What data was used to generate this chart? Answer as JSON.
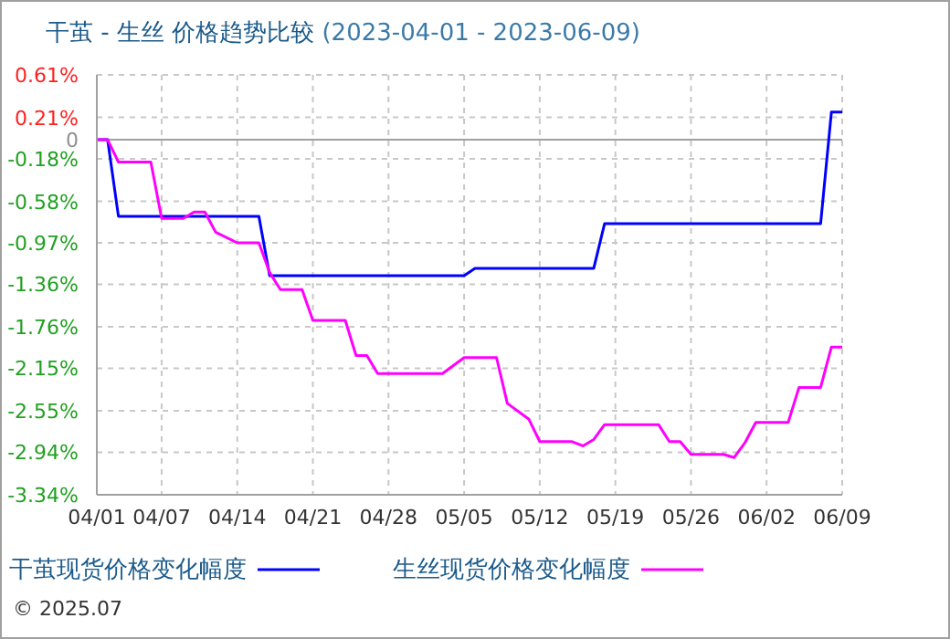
{
  "chart_data": {
    "type": "line",
    "title": "干茧 - 生丝 价格趋势比较",
    "subtitle": "(2023-04-01 - 2023-06-09)",
    "annotations": [
      "© 2025.07"
    ],
    "xlim": [
      "2023-04-01",
      "2023-06-09"
    ],
    "xticks": [
      {
        "value": "2023-04-01",
        "label": "04/01"
      },
      {
        "value": "2023-04-07",
        "label": "04/07"
      },
      {
        "value": "2023-04-14",
        "label": "04/14"
      },
      {
        "value": "2023-04-21",
        "label": "04/21"
      },
      {
        "value": "2023-04-28",
        "label": "04/28"
      },
      {
        "value": "2023-05-05",
        "label": "05/05"
      },
      {
        "value": "2023-05-12",
        "label": "05/12"
      },
      {
        "value": "2023-05-19",
        "label": "05/19"
      },
      {
        "value": "2023-05-26",
        "label": "05/26"
      },
      {
        "value": "2023-06-02",
        "label": "06/02"
      },
      {
        "value": "2023-06-09",
        "label": "06/09"
      }
    ],
    "ylim": [
      -3.34,
      0.61
    ],
    "yticks": [
      {
        "value": 0.61,
        "label": "0.61%"
      },
      {
        "value": 0.21,
        "label": "0.21%"
      },
      0,
      {
        "value": -0.18,
        "label": "-0.18%"
      },
      {
        "value": -0.58,
        "label": "-0.58%"
      },
      {
        "value": -0.97,
        "label": "-0.97%"
      },
      {
        "value": -1.36,
        "label": "-1.36%"
      },
      {
        "value": -1.76,
        "label": "-1.76%"
      },
      {
        "value": -2.15,
        "label": "-2.15%"
      },
      {
        "value": -2.55,
        "label": "-2.55%"
      },
      {
        "value": -2.94,
        "label": "-2.94%"
      },
      {
        "value": -3.34,
        "label": "-3.34%"
      }
    ],
    "grid": true,
    "legend": "bottom",
    "marker": "none",
    "line_style": "solid",
    "series": [
      {
        "name": "干茧现货价格变化幅度",
        "color": "#0000ff",
        "x": [
          "2023-04-01",
          "2023-04-02",
          "2023-04-03",
          "2023-04-16",
          "2023-04-17",
          "2023-05-05",
          "2023-05-06",
          "2023-05-17",
          "2023-05-18",
          "2023-06-07",
          "2023-06-08",
          "2023-06-09"
        ],
        "values": [
          0,
          0,
          -0.72,
          -0.72,
          -1.28,
          -1.28,
          -1.21,
          -1.21,
          -0.79,
          -0.79,
          0.26,
          0.26
        ]
      },
      {
        "name": "生丝现货价格变化幅度",
        "color": "#ff00ff",
        "x": [
          "2023-04-01",
          "2023-04-02",
          "2023-04-03",
          "2023-04-06",
          "2023-04-07",
          "2023-04-09",
          "2023-04-10",
          "2023-04-11",
          "2023-04-12",
          "2023-04-14",
          "2023-04-16",
          "2023-04-17",
          "2023-04-18",
          "2023-04-20",
          "2023-04-21",
          "2023-04-24",
          "2023-04-25",
          "2023-04-26",
          "2023-04-27",
          "2023-05-03",
          "2023-05-05",
          "2023-05-08",
          "2023-05-09",
          "2023-05-11",
          "2023-05-12",
          "2023-05-15",
          "2023-05-16",
          "2023-05-17",
          "2023-05-18",
          "2023-05-23",
          "2023-05-24",
          "2023-05-25",
          "2023-05-26",
          "2023-05-29",
          "2023-05-30",
          "2023-05-31",
          "2023-06-01",
          "2023-06-04",
          "2023-06-05",
          "2023-06-07",
          "2023-06-08",
          "2023-06-09"
        ],
        "values": [
          0,
          0,
          -0.21,
          -0.21,
          -0.74,
          -0.74,
          -0.68,
          -0.68,
          -0.87,
          -0.97,
          -0.97,
          -1.25,
          -1.41,
          -1.41,
          -1.7,
          -1.7,
          -2.03,
          -2.03,
          -2.2,
          -2.2,
          -2.05,
          -2.05,
          -2.48,
          -2.63,
          -2.84,
          -2.84,
          -2.88,
          -2.82,
          -2.68,
          -2.68,
          -2.84,
          -2.84,
          -2.96,
          -2.96,
          -2.99,
          -2.85,
          -2.66,
          -2.66,
          -2.33,
          -2.33,
          -1.95,
          -1.95
        ]
      }
    ]
  }
}
